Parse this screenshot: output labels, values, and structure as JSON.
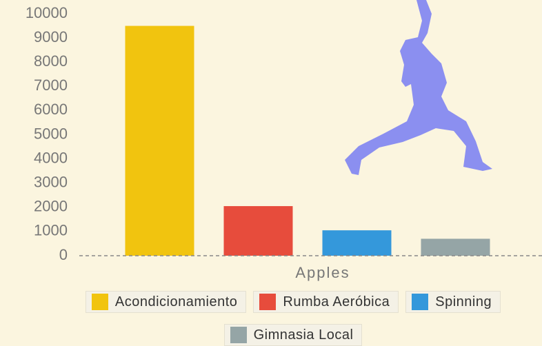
{
  "chart_data": {
    "type": "bar",
    "categories": [
      "Apples"
    ],
    "series": [
      {
        "name": "Acondicionamiento",
        "color": "#f1c40f",
        "values": [
          9500
        ]
      },
      {
        "name": "Rumba Aeróbica",
        "color": "#e74c3c",
        "values": [
          2050
        ]
      },
      {
        "name": "Spinning",
        "color": "#3498db",
        "values": [
          1050
        ]
      },
      {
        "name": "Gimnasia Local",
        "color": "#95a5a6",
        "values": [
          700
        ]
      }
    ],
    "ylim": [
      0,
      10000
    ],
    "yticks": [
      0,
      1000,
      2000,
      3000,
      4000,
      5000,
      6000,
      7000,
      8000,
      9000,
      10000
    ],
    "grid": false
  }
}
